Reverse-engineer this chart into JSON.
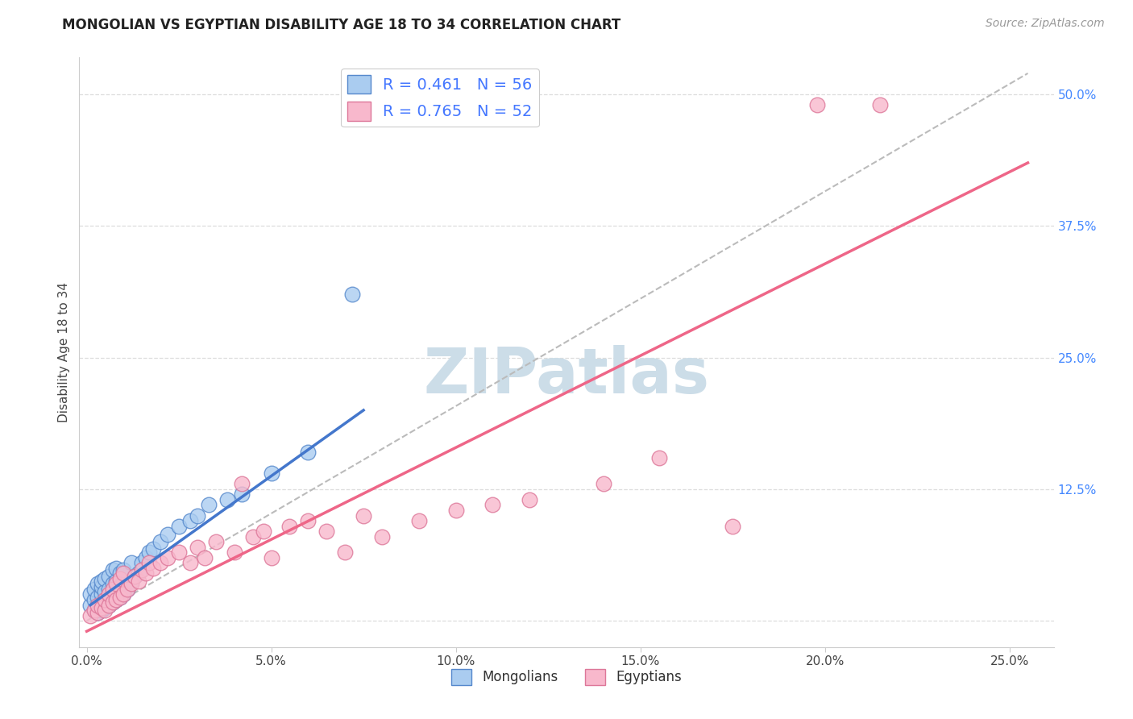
{
  "title": "MONGOLIAN VS EGYPTIAN DISABILITY AGE 18 TO 34 CORRELATION CHART",
  "source": "Source: ZipAtlas.com",
  "ylabel": "Disability Age 18 to 34",
  "xlim": [
    -0.002,
    0.262
  ],
  "ylim": [
    -0.025,
    0.535
  ],
  "xlabel_vals": [
    0.0,
    0.05,
    0.1,
    0.15,
    0.2,
    0.25
  ],
  "xlabel_labels": [
    "0.0%",
    "5.0%",
    "10.0%",
    "15.0%",
    "20.0%",
    "25.0%"
  ],
  "right_ytick_vals": [
    0.0,
    0.125,
    0.25,
    0.375,
    0.5
  ],
  "right_ytick_labels": [
    "",
    "12.5%",
    "25.0%",
    "37.5%",
    "50.0%"
  ],
  "mongolian_R": 0.461,
  "mongolian_N": 56,
  "egyptian_R": 0.765,
  "egyptian_N": 52,
  "mongolian_color": "#aaccf0",
  "mongolian_edge": "#5588cc",
  "mongolian_line_color": "#4477cc",
  "egyptian_color": "#f8b8cc",
  "egyptian_edge": "#dd7799",
  "egyptian_line_color": "#ee6688",
  "dashed_line_color": "#bbbbbb",
  "watermark_color": "#ccdde8",
  "grid_color": "#dddddd",
  "background_color": "#ffffff",
  "right_tick_color": "#4488ff",
  "mongolian_x": [
    0.001,
    0.001,
    0.002,
    0.002,
    0.002,
    0.003,
    0.003,
    0.003,
    0.003,
    0.004,
    0.004,
    0.004,
    0.004,
    0.004,
    0.005,
    0.005,
    0.005,
    0.005,
    0.006,
    0.006,
    0.006,
    0.006,
    0.007,
    0.007,
    0.007,
    0.007,
    0.008,
    0.008,
    0.008,
    0.008,
    0.009,
    0.009,
    0.009,
    0.01,
    0.01,
    0.01,
    0.011,
    0.012,
    0.012,
    0.013,
    0.014,
    0.015,
    0.016,
    0.017,
    0.018,
    0.02,
    0.022,
    0.025,
    0.028,
    0.03,
    0.033,
    0.038,
    0.042,
    0.05,
    0.06,
    0.072
  ],
  "mongolian_y": [
    0.015,
    0.025,
    0.01,
    0.02,
    0.03,
    0.008,
    0.015,
    0.022,
    0.035,
    0.01,
    0.018,
    0.025,
    0.032,
    0.038,
    0.012,
    0.02,
    0.028,
    0.04,
    0.015,
    0.022,
    0.03,
    0.042,
    0.018,
    0.025,
    0.035,
    0.048,
    0.02,
    0.028,
    0.038,
    0.05,
    0.022,
    0.032,
    0.045,
    0.025,
    0.035,
    0.048,
    0.03,
    0.038,
    0.055,
    0.042,
    0.045,
    0.055,
    0.06,
    0.065,
    0.068,
    0.075,
    0.082,
    0.09,
    0.095,
    0.1,
    0.11,
    0.115,
    0.12,
    0.14,
    0.16,
    0.31
  ],
  "egyptian_x": [
    0.001,
    0.002,
    0.003,
    0.003,
    0.004,
    0.005,
    0.005,
    0.006,
    0.006,
    0.007,
    0.007,
    0.008,
    0.008,
    0.009,
    0.009,
    0.01,
    0.01,
    0.011,
    0.012,
    0.013,
    0.014,
    0.015,
    0.016,
    0.017,
    0.018,
    0.02,
    0.022,
    0.025,
    0.028,
    0.03,
    0.032,
    0.035,
    0.04,
    0.042,
    0.045,
    0.048,
    0.05,
    0.055,
    0.06,
    0.065,
    0.07,
    0.075,
    0.08,
    0.09,
    0.1,
    0.11,
    0.12,
    0.14,
    0.155,
    0.175,
    0.198,
    0.215
  ],
  "egyptian_y": [
    0.005,
    0.01,
    0.008,
    0.015,
    0.012,
    0.01,
    0.02,
    0.015,
    0.025,
    0.018,
    0.03,
    0.02,
    0.035,
    0.022,
    0.04,
    0.025,
    0.045,
    0.03,
    0.035,
    0.042,
    0.038,
    0.048,
    0.045,
    0.055,
    0.05,
    0.055,
    0.06,
    0.065,
    0.055,
    0.07,
    0.06,
    0.075,
    0.065,
    0.13,
    0.08,
    0.085,
    0.06,
    0.09,
    0.095,
    0.085,
    0.065,
    0.1,
    0.08,
    0.095,
    0.105,
    0.11,
    0.115,
    0.13,
    0.155,
    0.09,
    0.49,
    0.49
  ],
  "mongolian_line_x": [
    0.001,
    0.075
  ],
  "mongolian_line_y": [
    0.015,
    0.2
  ],
  "egyptian_line_x": [
    0.0,
    0.255
  ],
  "egyptian_line_y": [
    -0.01,
    0.435
  ],
  "diag_line_x": [
    0.0,
    0.255
  ],
  "diag_line_y": [
    0.0,
    0.52
  ]
}
